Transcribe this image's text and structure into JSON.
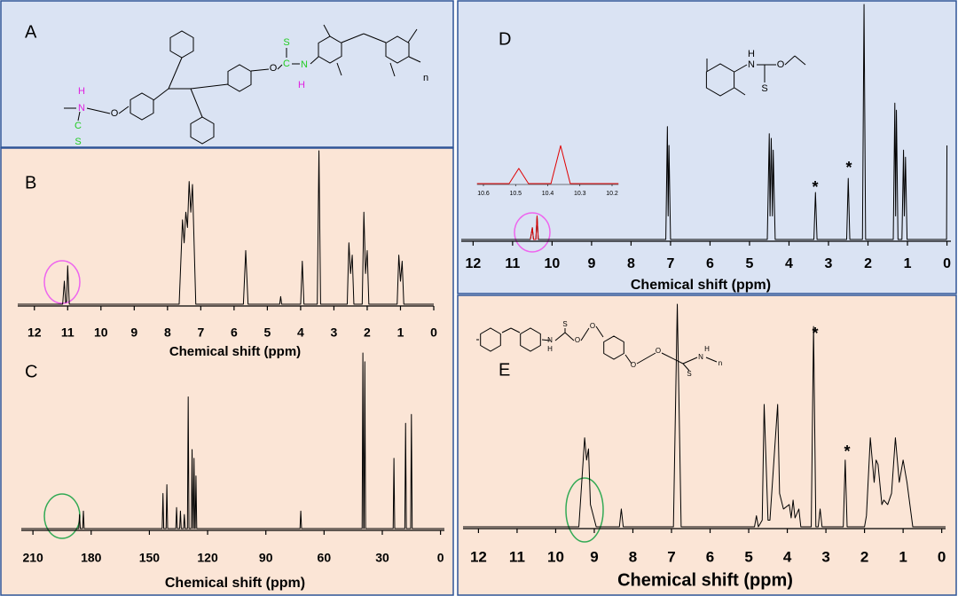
{
  "panel_labels": [
    "A",
    "B",
    "C",
    "D",
    "E"
  ],
  "structures": {
    "A": [
      "H",
      "N",
      "O",
      "C",
      "S",
      "S",
      "C",
      "O",
      "N",
      "H",
      "n"
    ],
    "D": [
      "H",
      "N",
      "O",
      "S"
    ],
    "E": [
      "N",
      "H",
      "S",
      "O",
      "O",
      "O",
      "O",
      "S",
      "N",
      "H",
      "n"
    ]
  },
  "chart_data": [
    {
      "type": "line",
      "xlabel": "Chemical shift (ppm)",
      "xlim": [
        12.5,
        0
      ],
      "ylim": [
        0,
        100
      ],
      "xticks": [
        12,
        11,
        10,
        9,
        8,
        7,
        6,
        5,
        4,
        3,
        2,
        1,
        0
      ],
      "series": [
        {
          "color": "#000000",
          "x": [
            12.5,
            11.15,
            11.1,
            11.06,
            11.03,
            11.0,
            10.95,
            7.65,
            7.55,
            7.5,
            7.45,
            7.4,
            7.35,
            7.3,
            7.25,
            7.15,
            5.72,
            5.65,
            5.58,
            4.63,
            4.6,
            4.57,
            4.0,
            3.95,
            3.9,
            3.5,
            3.45,
            3.4,
            2.6,
            2.55,
            2.5,
            2.45,
            2.4,
            2.15,
            2.1,
            2.05,
            2.0,
            1.95,
            1.1,
            1.05,
            1.0,
            0.95,
            0.9,
            0
          ],
          "values": [
            0,
            0,
            15,
            1,
            2,
            25,
            0,
            0,
            55,
            40,
            60,
            50,
            80,
            60,
            78,
            0,
            0,
            35,
            0,
            0,
            5,
            0,
            0,
            28,
            0,
            0,
            100,
            0,
            0,
            40,
            20,
            32,
            0,
            0,
            60,
            20,
            35,
            0,
            0,
            32,
            15,
            28,
            0,
            0
          ]
        }
      ]
    },
    {
      "type": "line",
      "xlabel": "Chemical shift (ppm)",
      "xlim": [
        216,
        -2
      ],
      "ylim": [
        0,
        100
      ],
      "xticks": [
        210,
        180,
        150,
        120,
        90,
        60,
        30,
        0
      ],
      "series": [
        {
          "color": "#000000",
          "x": [
            216,
            186.4,
            186,
            185.6,
            184.4,
            184,
            183.6,
            143.4,
            143,
            142.6,
            141.4,
            141,
            140.6,
            136.4,
            136,
            135.6,
            134.4,
            134,
            133.6,
            132.4,
            132,
            131.6,
            130.4,
            130,
            129.6,
            128.4,
            128,
            127.6,
            127.4,
            127,
            126.6,
            126.4,
            126,
            125.6,
            72.4,
            72,
            71.6,
            40.4,
            40,
            39.6,
            39.4,
            39,
            38.6,
            24.4,
            24,
            23.6,
            18.4,
            18,
            17.6,
            15.4,
            15,
            14.6,
            -2
          ],
          "values": [
            0,
            0,
            8,
            0,
            0,
            10,
            0,
            0,
            20,
            0,
            0,
            25,
            0,
            0,
            12,
            0,
            0,
            10,
            0,
            0,
            8,
            0,
            0,
            75,
            0,
            0,
            45,
            0,
            0,
            40,
            0,
            0,
            30,
            0,
            0,
            10,
            0,
            0,
            100,
            0,
            0,
            95,
            0,
            0,
            40,
            0,
            0,
            60,
            0,
            0,
            65,
            0,
            0
          ]
        }
      ]
    },
    {
      "type": "line",
      "xlabel": "Chemical shift (ppm)",
      "xlim": [
        12.3,
        -0.1
      ],
      "ylim": [
        0,
        100
      ],
      "xticks": [
        12,
        11,
        10,
        9,
        8,
        7,
        6,
        5,
        4,
        3,
        2,
        1,
        0
      ],
      "annotations": [
        "*",
        "*"
      ],
      "series": [
        {
          "color": "#000000",
          "x": [
            12.3,
            10.55,
            10.5,
            10.47,
            10.41,
            10.38,
            10.35,
            7.12,
            7.08,
            7.06,
            7.04,
            7.0,
            4.55,
            4.5,
            4.48,
            4.45,
            4.42,
            4.4,
            4.35,
            3.37,
            3.33,
            3.29,
            2.54,
            2.5,
            2.46,
            2.14,
            2.1,
            2.06,
            1.36,
            1.32,
            1.3,
            1.28,
            1.24,
            1.14,
            1.1,
            1.08,
            1.05,
            1.01,
            0.01,
            0
          ],
          "values": [
            0,
            0,
            5,
            0,
            0,
            10,
            0,
            0,
            48,
            10,
            40,
            0,
            0,
            45,
            10,
            43,
            10,
            38,
            0,
            0,
            20,
            0,
            0,
            26,
            0,
            0,
            100,
            0,
            0,
            58,
            10,
            55,
            0,
            0,
            38,
            10,
            35,
            0,
            0,
            40
          ]
        },
        {
          "color": "#e00000",
          "x": [
            10.55,
            10.5,
            10.47,
            10.41,
            10.38,
            10.35
          ],
          "values": [
            0,
            5,
            0,
            0,
            10,
            0
          ]
        }
      ],
      "inset": {
        "xlim": [
          10.62,
          10.18
        ],
        "ylim": [
          0,
          100
        ],
        "xticks": [
          10.6,
          10.5,
          10.4,
          10.3,
          10.2
        ],
        "series": [
          {
            "color": "#e00000",
            "x": [
              10.62,
              10.52,
              10.49,
              10.46,
              10.39,
              10.36,
              10.33,
              10.18
            ],
            "values": [
              0,
              0,
              30,
              0,
              0,
              75,
              0,
              0
            ]
          }
        ]
      }
    },
    {
      "type": "line",
      "xlabel": "Chemical shift (ppm)",
      "xlim": [
        12.4,
        -0.1
      ],
      "ylim": [
        0,
        100
      ],
      "xticks": [
        12,
        11,
        10,
        9,
        8,
        7,
        6,
        5,
        4,
        3,
        2,
        1,
        0
      ],
      "annotations": [
        "*",
        "*"
      ],
      "series": [
        {
          "color": "#000000",
          "x": [
            12.4,
            9.4,
            9.25,
            9.2,
            9.15,
            9.1,
            8.95,
            8.35,
            8.3,
            8.25,
            6.95,
            6.85,
            6.75,
            4.85,
            4.8,
            4.75,
            4.65,
            4.6,
            4.5,
            4.45,
            4.25,
            4.2,
            4.1,
            3.95,
            3.9,
            3.85,
            3.8,
            3.7,
            3.65,
            3.38,
            3.32,
            3.26,
            3.2,
            3.15,
            3.1,
            2.55,
            2.5,
            2.45,
            2.0,
            1.95,
            1.85,
            1.75,
            1.7,
            1.65,
            1.55,
            1.5,
            1.4,
            1.3,
            1.2,
            1.1,
            1.0,
            0.9,
            0.75,
            -0.1
          ],
          "values": [
            0,
            0,
            40,
            30,
            35,
            10,
            0,
            0,
            8,
            0,
            0,
            100,
            0,
            0,
            5,
            0,
            3,
            55,
            3,
            3,
            55,
            15,
            8,
            10,
            4,
            12,
            4,
            8,
            0,
            0,
            90,
            0,
            0,
            8,
            0,
            0,
            30,
            0,
            0,
            5,
            40,
            20,
            30,
            28,
            10,
            12,
            10,
            15,
            40,
            20,
            30,
            20,
            0,
            0
          ]
        }
      ]
    }
  ]
}
